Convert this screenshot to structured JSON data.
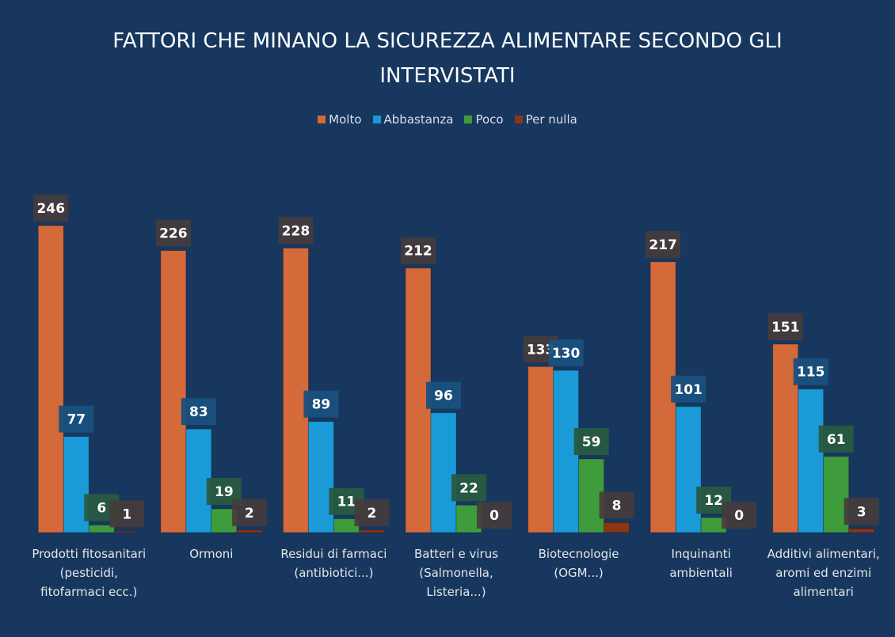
{
  "chart_data": {
    "type": "bar",
    "title": "FATTORI CHE MINANO LA SICUREZZA ALIMENTARE SECONDO GLI INTERVISTATI",
    "categories": [
      "Prodotti fitosanitari (pesticidi, fitofarmaci ecc.)",
      "Ormoni",
      "Residui di farmaci (antibiotici...)",
      "Batteri e virus (Salmonella, Listeria...)",
      "Biotecnologie (OGM...)",
      "Inquinanti ambientali",
      "Additivi alimentari, aromi ed enzimi alimentari"
    ],
    "series": [
      {
        "name": "Molto",
        "color": "#d4693a",
        "values": [
          246,
          226,
          228,
          212,
          133,
          217,
          151
        ]
      },
      {
        "name": "Abbastanza",
        "color": "#1b9ad8",
        "values": [
          77,
          83,
          89,
          96,
          130,
          101,
          115
        ]
      },
      {
        "name": "Poco",
        "color": "#3e9c3c",
        "values": [
          6,
          19,
          11,
          22,
          59,
          12,
          61
        ]
      },
      {
        "name": "Per nulla",
        "color": "#8a3616",
        "values": [
          1,
          2,
          2,
          0,
          8,
          0,
          3
        ]
      }
    ],
    "ylim": [
      0,
      300
    ],
    "legend": "top"
  }
}
